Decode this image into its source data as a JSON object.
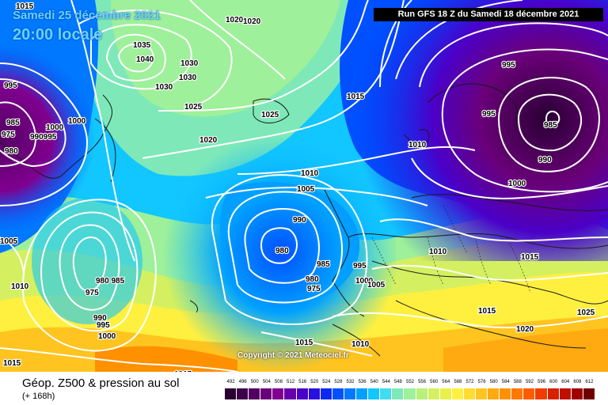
{
  "header": {
    "date": "Samedi 25 décembre 2021",
    "time": "20:00 locale",
    "run": "Run GFS 18 Z du Samedi 18 décembre 2021"
  },
  "copyright": "Copyright © 2021 Meteociel.fr",
  "footer": {
    "title": "Géop. Z500 & pression au sol",
    "forecast_hour": "(+ 168h)"
  },
  "scale": {
    "labels": [
      "492",
      "496",
      "500",
      "504",
      "508",
      "512",
      "516",
      "520",
      "524",
      "528",
      "532",
      "536",
      "540",
      "544",
      "548",
      "552",
      "556",
      "560",
      "564",
      "568",
      "572",
      "576",
      "580",
      "584",
      "588",
      "592",
      "596",
      "600",
      "604",
      "608",
      "612"
    ],
    "colors": [
      "#2a0033",
      "#3d004a",
      "#520062",
      "#6a0079",
      "#80008f",
      "#6600aa",
      "#4b00c8",
      "#2a10e0",
      "#0a2af0",
      "#0050ff",
      "#0078ff",
      "#00a0ff",
      "#12c6ff",
      "#40dcf0",
      "#7ee8b8",
      "#9ef09a",
      "#b8f07a",
      "#d4f060",
      "#eaf04a",
      "#fff040",
      "#ffdc30",
      "#ffc420",
      "#ffaa10",
      "#ff9000",
      "#ff7800",
      "#ff5c00",
      "#f03c00",
      "#d82000",
      "#c01000",
      "#a00000",
      "#700000"
    ]
  },
  "isobar_labels": [
    {
      "text": "1015"
    },
    {
      "text": "1020"
    },
    {
      "text": "1020"
    },
    {
      "text": "1035"
    },
    {
      "text": "1040"
    },
    {
      "text": "1030"
    },
    {
      "text": "1030"
    },
    {
      "text": "1030"
    },
    {
      "text": "1025"
    },
    {
      "text": "1025"
    },
    {
      "text": "995"
    },
    {
      "text": "985"
    },
    {
      "text": "1000"
    },
    {
      "text": "1000"
    },
    {
      "text": "975"
    },
    {
      "text": "990995"
    },
    {
      "text": "980"
    },
    {
      "text": "1020"
    },
    {
      "text": "1015"
    },
    {
      "text": "995"
    },
    {
      "text": "995"
    },
    {
      "text": "985"
    },
    {
      "text": "990"
    },
    {
      "text": "1000"
    },
    {
      "text": "1010"
    },
    {
      "text": "1010"
    },
    {
      "text": "1005"
    },
    {
      "text": "990"
    },
    {
      "text": "980"
    },
    {
      "text": "985"
    },
    {
      "text": "995"
    },
    {
      "text": "980"
    },
    {
      "text": "975"
    },
    {
      "text": "1000"
    },
    {
      "text": "1005"
    },
    {
      "text": "1010"
    },
    {
      "text": "1015"
    },
    {
      "text": "1015"
    },
    {
      "text": "1025"
    },
    {
      "text": "1020"
    },
    {
      "text": "1015"
    },
    {
      "text": "1010"
    },
    {
      "text": "980 985"
    },
    {
      "text": "975"
    },
    {
      "text": "990"
    },
    {
      "text": "995"
    },
    {
      "text": "1000"
    },
    {
      "text": "1005"
    },
    {
      "text": "1010"
    },
    {
      "text": "1015"
    },
    {
      "text": "1015"
    }
  ]
}
